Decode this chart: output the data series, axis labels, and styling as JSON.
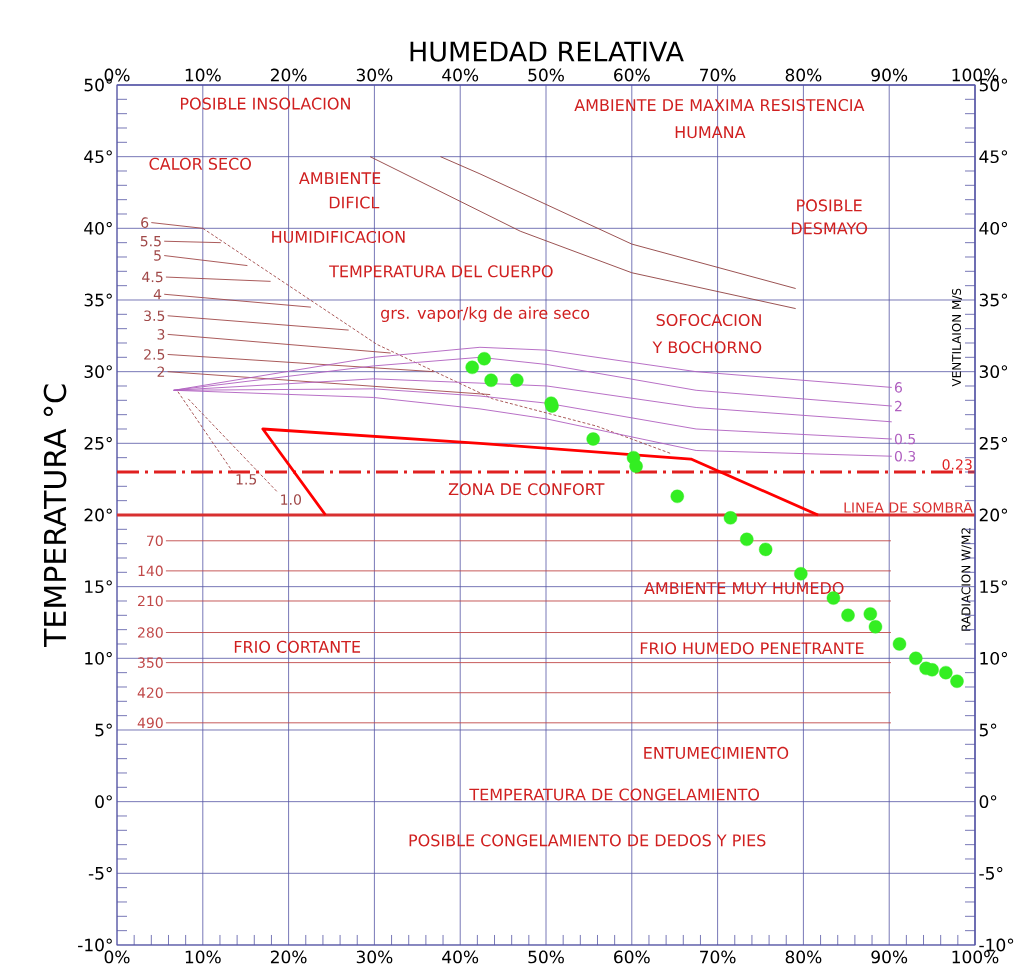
{
  "chart_data": {
    "type": "line",
    "x2label": "HUMEDAD RELATIVA",
    "ylabel": "TEMPERATURA °C",
    "xlim": [
      0,
      100
    ],
    "x2lim": [
      0,
      100
    ],
    "ylim": [
      -10,
      50
    ],
    "y2lim": [
      -10,
      50
    ],
    "grid": true,
    "xticks": [
      {
        "value": 0,
        "label": "0%"
      },
      {
        "value": 10,
        "label": "10%"
      },
      {
        "value": 20,
        "label": "20%"
      },
      {
        "value": 30,
        "label": "30%"
      },
      {
        "value": 40,
        "label": "40%"
      },
      {
        "value": 50,
        "label": "50%"
      },
      {
        "value": 60,
        "label": "60%"
      },
      {
        "value": 70,
        "label": "70%"
      },
      {
        "value": 80,
        "label": "80%"
      },
      {
        "value": 90,
        "label": "90%"
      },
      {
        "value": 100,
        "label": "100%"
      }
    ],
    "x2ticks": [
      {
        "value": 0,
        "label": "0%"
      },
      {
        "value": 10,
        "label": "10%"
      },
      {
        "value": 20,
        "label": "20%"
      },
      {
        "value": 30,
        "label": "30%"
      },
      {
        "value": 40,
        "label": "40%"
      },
      {
        "value": 50,
        "label": "50%"
      },
      {
        "value": 60,
        "label": "60%"
      },
      {
        "value": 70,
        "label": "70%"
      },
      {
        "value": 80,
        "label": "80%"
      },
      {
        "value": 90,
        "label": "90%"
      },
      {
        "value": 100,
        "label": "100%"
      }
    ],
    "yticks": [
      {
        "value": -10,
        "label": "-10°"
      },
      {
        "value": -5,
        "label": "-5°"
      },
      {
        "value": 0,
        "label": "0°"
      },
      {
        "value": 5,
        "label": "5°"
      },
      {
        "value": 10,
        "label": "10°"
      },
      {
        "value": 15,
        "label": "15°"
      },
      {
        "value": 20,
        "label": "20°"
      },
      {
        "value": 25,
        "label": "25°"
      },
      {
        "value": 30,
        "label": "30°"
      },
      {
        "value": 35,
        "label": "35°"
      },
      {
        "value": 40,
        "label": "40°"
      },
      {
        "value": 45,
        "label": "45°"
      },
      {
        "value": 50,
        "label": "50°"
      }
    ],
    "y2ticks": [
      {
        "value": -10,
        "label": "-10°"
      },
      {
        "value": -5,
        "label": "-5°"
      },
      {
        "value": 0,
        "label": "0°"
      },
      {
        "value": 5,
        "label": "5°"
      },
      {
        "value": 10,
        "label": "10°"
      },
      {
        "value": 15,
        "label": "15°"
      },
      {
        "value": 20,
        "label": "20°"
      },
      {
        "value": 25,
        "label": "25°"
      },
      {
        "value": 30,
        "label": "30°"
      },
      {
        "value": 35,
        "label": "35°"
      },
      {
        "value": 40,
        "label": "40°"
      },
      {
        "value": 45,
        "label": "45°"
      },
      {
        "value": 50,
        "label": "50°"
      }
    ],
    "series": [
      {
        "type": "line",
        "color": "#a04848",
        "x": [
          4.0,
          10.0
        ],
        "values": [
          40.4,
          40.0
        ],
        "name": "6"
      },
      {
        "type": "line",
        "color": "#a04848",
        "x": [
          5.5,
          12.1
        ],
        "values": [
          39.1,
          39.0
        ],
        "name": "5.5"
      },
      {
        "type": "line",
        "color": "#a04848",
        "x": [
          5.5,
          15.2
        ],
        "values": [
          38.1,
          37.4
        ],
        "name": "5"
      },
      {
        "type": "line",
        "color": "#a04848",
        "x": [
          5.7,
          17.9
        ],
        "values": [
          36.6,
          36.3
        ],
        "name": "4.5"
      },
      {
        "type": "line",
        "color": "#a04848",
        "x": [
          5.5,
          22.6
        ],
        "values": [
          35.4,
          34.5
        ],
        "name": "4"
      },
      {
        "type": "line",
        "color": "#a04848",
        "x": [
          5.9,
          27.0
        ],
        "values": [
          33.9,
          32.9
        ],
        "name": "3.5"
      },
      {
        "type": "line",
        "color": "#a04848",
        "x": [
          5.9,
          31.9
        ],
        "values": [
          32.6,
          31.3
        ],
        "name": "3"
      },
      {
        "type": "line",
        "color": "#a04848",
        "x": [
          5.9,
          36.9
        ],
        "values": [
          31.2,
          30.0
        ],
        "name": "2.5"
      },
      {
        "type": "line",
        "color": "#a04848",
        "x": [
          5.9,
          43.5
        ],
        "values": [
          30.0,
          28.4
        ],
        "name": "2"
      },
      {
        "type": "line",
        "color": "#a04848",
        "line_style": "dashed",
        "x": [
          7.1,
          13.5
        ],
        "values": [
          28.6,
          23.0
        ],
        "name": "1.5"
      },
      {
        "type": "line",
        "color": "#a04848",
        "line_style": "dashed",
        "x": [
          8.3,
          18.7
        ],
        "values": [
          28.1,
          21.6
        ],
        "name": "1.0"
      },
      {
        "type": "line",
        "color": "#a04848",
        "line_style": "dashed",
        "x": [
          10.0,
          30.3,
          43.8,
          55.9,
          64.5
        ],
        "values": [
          40.0,
          31.9,
          28.1,
          26.2,
          24.3
        ]
      },
      {
        "type": "line",
        "color": "#904040",
        "x": [
          37.7,
          42.3,
          60.0,
          79.1
        ],
        "values": [
          45.0,
          43.8,
          38.9,
          35.8
        ]
      },
      {
        "type": "line",
        "color": "#904040",
        "x": [
          29.5,
          47.0,
          60.0,
          79.1
        ],
        "values": [
          45.0,
          39.8,
          36.9,
          34.4
        ]
      },
      {
        "type": "line",
        "color": "#b060c0",
        "x": [
          6.6,
          29.9,
          42.3,
          50.1,
          67.5,
          90.3
        ],
        "values": [
          28.7,
          31.0,
          31.7,
          31.5,
          30.0,
          28.9
        ],
        "name": "6"
      },
      {
        "type": "line",
        "color": "#b060c0",
        "x": [
          6.6,
          29.9,
          42.3,
          50.1,
          67.5,
          90.3
        ],
        "values": [
          28.7,
          30.4,
          31.0,
          30.5,
          28.7,
          27.6
        ],
        "name": "2"
      },
      {
        "type": "line",
        "color": "#b060c0",
        "x": [
          6.6,
          29.9,
          42.3,
          50.1,
          67.5,
          90.3
        ],
        "values": [
          28.7,
          29.5,
          29.2,
          29.0,
          27.5,
          26.5
        ]
      },
      {
        "type": "line",
        "color": "#b060c0",
        "x": [
          6.6,
          29.9,
          42.3,
          50.1,
          67.5,
          90.3
        ],
        "values": [
          28.7,
          28.8,
          28.3,
          27.8,
          26.0,
          25.3
        ],
        "name": "0.5"
      },
      {
        "type": "line",
        "color": "#b060c0",
        "x": [
          6.6,
          29.9,
          42.3,
          50.1,
          67.5,
          90.3
        ],
        "values": [
          28.7,
          28.2,
          27.4,
          26.7,
          24.5,
          24.1
        ],
        "name": "0.3"
      },
      {
        "type": "line",
        "color": "#c04848",
        "x": [
          5.7,
          90.2
        ],
        "values": [
          18.2,
          18.2
        ],
        "name": "70"
      },
      {
        "type": "line",
        "color": "#c04848",
        "x": [
          5.7,
          90.2
        ],
        "values": [
          16.1,
          16.1
        ],
        "name": "140"
      },
      {
        "type": "line",
        "color": "#c04848",
        "x": [
          5.7,
          90.2
        ],
        "values": [
          14.0,
          14.0
        ],
        "name": "210"
      },
      {
        "type": "line",
        "color": "#c04848",
        "x": [
          5.7,
          90.2
        ],
        "values": [
          11.8,
          11.8
        ],
        "name": "280"
      },
      {
        "type": "line",
        "color": "#c04848",
        "x": [
          5.7,
          90.2
        ],
        "values": [
          9.7,
          9.7
        ],
        "name": "350"
      },
      {
        "type": "line",
        "color": "#c04848",
        "x": [
          5.7,
          90.2
        ],
        "values": [
          7.6,
          7.6
        ],
        "name": "420"
      },
      {
        "type": "line",
        "color": "#c04848",
        "x": [
          5.7,
          90.2
        ],
        "values": [
          5.5,
          5.5
        ],
        "name": "490"
      },
      {
        "color": "#e02020",
        "line_style": "dashed",
        "x": [
          0,
          100
        ],
        "values": [
          23,
          23
        ],
        "name": "0.23"
      },
      {
        "color": "#d83030",
        "line_style": "solid",
        "x": [
          0,
          100
        ],
        "values": [
          20,
          20
        ],
        "name": "LINEA DE SOMBRA"
      },
      {
        "color": "#ff0000",
        "x": [
          24.3,
          17.0,
          42.3,
          66.9,
          81.7
        ],
        "values": [
          20.0,
          26.0,
          25.0,
          23.9,
          20.0
        ]
      },
      {
        "type": "scatter",
        "color": "#33ee22",
        "marker": "circle",
        "x": [
          41.4,
          42.8,
          43.6,
          46.6,
          50.6,
          50.7,
          55.5,
          60.2,
          60.5,
          65.3,
          71.5,
          73.4,
          75.6,
          79.7,
          83.5,
          85.2,
          87.8,
          88.4,
          91.2,
          93.1,
          94.3,
          95.0,
          96.6,
          97.9
        ],
        "values": [
          30.3,
          30.9,
          29.4,
          29.4,
          27.8,
          27.6,
          25.3,
          24.0,
          23.4,
          21.3,
          19.8,
          18.3,
          17.6,
          15.9,
          14.2,
          13.0,
          13.1,
          12.2,
          11.0,
          10.0,
          9.3,
          9.2,
          9.0,
          8.4
        ]
      }
    ],
    "annotations": [
      "POSIBLE INSOLACION",
      "AMBIENTE DE MAXIMA RESISTENCIA",
      "HUMANA",
      "CALOR SECO",
      "AMBIENTE",
      "DIFICL",
      "POSIBLE",
      "DESMAYO",
      "HUMIDIFICACION",
      "TEMPERATURA DEL CUERPO",
      "grs. vapor/kg de aire seco",
      "SOFOCACION",
      "Y BOCHORNO",
      "ZONA DE CONFORT",
      "AMBIENTE MUY HUMEDO",
      "FRIO CORTANTE",
      "FRIO HUMEDO PENETRANTE",
      "ENTUMECIMIENTO",
      "TEMPERATURA DE CONGELAMIENTO",
      "POSIBLE CONGELAMIENTO DE DEDOS Y PIES",
      "VENTILAION M/S",
      "RADIACION W/M2"
    ]
  }
}
